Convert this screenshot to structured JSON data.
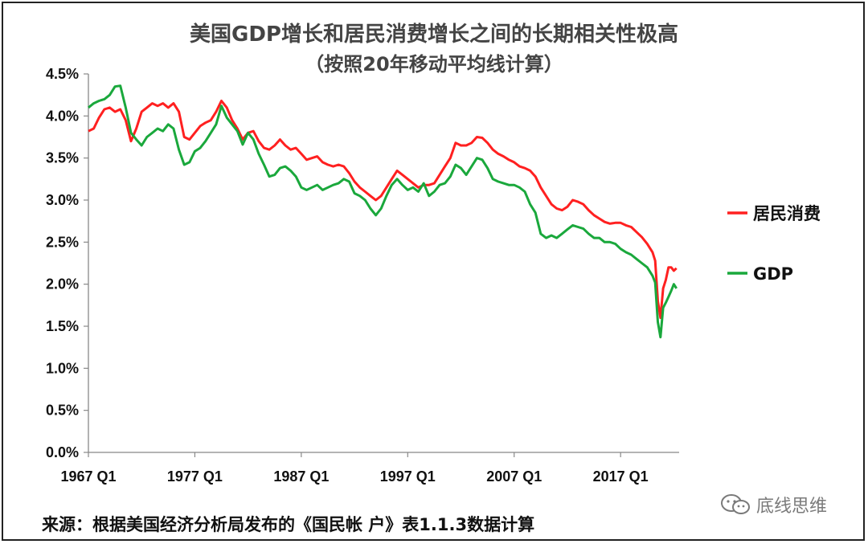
{
  "title_line1": "美国GDP增长和居民消费增长之间的长期相关性极高",
  "title_line2": "（按照20年移动平均线计算）",
  "source_note": "来源：根据美国经济分析局发布的《国民帐 户》表1.1.3数据计算",
  "watermark_text": "底线思维",
  "chart_data": {
    "type": "line",
    "x_start": 1967.0,
    "x_end": 2022.5,
    "x_ticks": [
      "1967 Q1",
      "1977 Q1",
      "1987 Q1",
      "1997 Q1",
      "2007 Q1",
      "2017 Q1"
    ],
    "x_tick_values": [
      1967,
      1977,
      1987,
      1997,
      2007,
      2017
    ],
    "y_ticks": [
      "0.0%",
      "0.5%",
      "1.0%",
      "1.5%",
      "2.0%",
      "2.5%",
      "3.0%",
      "3.5%",
      "4.0%",
      "4.5%"
    ],
    "ylim": [
      0,
      4.5
    ],
    "legend_position": "right",
    "grid": false,
    "series": [
      {
        "name": "居民消费",
        "color": "#ff2020",
        "points": [
          [
            1967.0,
            3.82
          ],
          [
            1967.5,
            3.85
          ],
          [
            1968.0,
            3.98
          ],
          [
            1968.5,
            4.08
          ],
          [
            1969.0,
            4.1
          ],
          [
            1969.5,
            4.05
          ],
          [
            1970.0,
            4.08
          ],
          [
            1970.5,
            3.95
          ],
          [
            1971.0,
            3.7
          ],
          [
            1971.5,
            3.85
          ],
          [
            1972.0,
            4.05
          ],
          [
            1972.5,
            4.1
          ],
          [
            1973.0,
            4.15
          ],
          [
            1973.5,
            4.12
          ],
          [
            1974.0,
            4.15
          ],
          [
            1974.5,
            4.1
          ],
          [
            1975.0,
            4.15
          ],
          [
            1975.5,
            4.05
          ],
          [
            1976.0,
            3.75
          ],
          [
            1976.5,
            3.72
          ],
          [
            1977.0,
            3.8
          ],
          [
            1977.5,
            3.88
          ],
          [
            1978.0,
            3.92
          ],
          [
            1978.5,
            3.95
          ],
          [
            1979.0,
            4.05
          ],
          [
            1979.5,
            4.18
          ],
          [
            1980.0,
            4.1
          ],
          [
            1980.5,
            3.95
          ],
          [
            1981.0,
            3.85
          ],
          [
            1981.5,
            3.72
          ],
          [
            1982.0,
            3.8
          ],
          [
            1982.5,
            3.82
          ],
          [
            1983.0,
            3.7
          ],
          [
            1983.5,
            3.62
          ],
          [
            1984.0,
            3.6
          ],
          [
            1984.5,
            3.65
          ],
          [
            1985.0,
            3.72
          ],
          [
            1985.5,
            3.65
          ],
          [
            1986.0,
            3.6
          ],
          [
            1986.5,
            3.62
          ],
          [
            1987.0,
            3.55
          ],
          [
            1987.5,
            3.48
          ],
          [
            1988.0,
            3.5
          ],
          [
            1988.5,
            3.52
          ],
          [
            1989.0,
            3.45
          ],
          [
            1989.5,
            3.42
          ],
          [
            1990.0,
            3.4
          ],
          [
            1990.5,
            3.42
          ],
          [
            1991.0,
            3.4
          ],
          [
            1991.5,
            3.32
          ],
          [
            1992.0,
            3.22
          ],
          [
            1992.5,
            3.15
          ],
          [
            1993.0,
            3.1
          ],
          [
            1993.5,
            3.05
          ],
          [
            1994.0,
            3.0
          ],
          [
            1994.5,
            3.05
          ],
          [
            1995.0,
            3.15
          ],
          [
            1995.5,
            3.25
          ],
          [
            1996.0,
            3.35
          ],
          [
            1996.5,
            3.3
          ],
          [
            1997.0,
            3.25
          ],
          [
            1997.5,
            3.2
          ],
          [
            1998.0,
            3.15
          ],
          [
            1998.5,
            3.18
          ],
          [
            1999.0,
            3.18
          ],
          [
            1999.5,
            3.2
          ],
          [
            2000.0,
            3.3
          ],
          [
            2000.5,
            3.4
          ],
          [
            2001.0,
            3.5
          ],
          [
            2001.5,
            3.68
          ],
          [
            2002.0,
            3.65
          ],
          [
            2002.5,
            3.65
          ],
          [
            2003.0,
            3.68
          ],
          [
            2003.5,
            3.75
          ],
          [
            2004.0,
            3.74
          ],
          [
            2004.5,
            3.68
          ],
          [
            2005.0,
            3.6
          ],
          [
            2005.5,
            3.55
          ],
          [
            2006.0,
            3.52
          ],
          [
            2006.5,
            3.48
          ],
          [
            2007.0,
            3.45
          ],
          [
            2007.5,
            3.4
          ],
          [
            2008.0,
            3.38
          ],
          [
            2008.5,
            3.35
          ],
          [
            2009.0,
            3.28
          ],
          [
            2009.5,
            3.15
          ],
          [
            2010.0,
            3.05
          ],
          [
            2010.5,
            2.95
          ],
          [
            2011.0,
            2.9
          ],
          [
            2011.5,
            2.88
          ],
          [
            2012.0,
            2.92
          ],
          [
            2012.5,
            3.0
          ],
          [
            2013.0,
            2.98
          ],
          [
            2013.5,
            2.95
          ],
          [
            2014.0,
            2.88
          ],
          [
            2014.5,
            2.82
          ],
          [
            2015.0,
            2.78
          ],
          [
            2015.5,
            2.74
          ],
          [
            2016.0,
            2.72
          ],
          [
            2016.5,
            2.73
          ],
          [
            2017.0,
            2.73
          ],
          [
            2017.5,
            2.7
          ],
          [
            2018.0,
            2.68
          ],
          [
            2018.5,
            2.62
          ],
          [
            2019.0,
            2.56
          ],
          [
            2019.5,
            2.48
          ],
          [
            2020.0,
            2.38
          ],
          [
            2020.25,
            2.28
          ],
          [
            2020.5,
            1.8
          ],
          [
            2020.75,
            1.6
          ],
          [
            2021.0,
            1.95
          ],
          [
            2021.25,
            2.05
          ],
          [
            2021.5,
            2.2
          ],
          [
            2021.75,
            2.2
          ],
          [
            2022.0,
            2.16
          ],
          [
            2022.25,
            2.19
          ]
        ]
      },
      {
        "name": "GDP",
        "color": "#1aa83c",
        "points": [
          [
            1967.0,
            4.1
          ],
          [
            1967.5,
            4.15
          ],
          [
            1968.0,
            4.18
          ],
          [
            1968.5,
            4.2
          ],
          [
            1969.0,
            4.25
          ],
          [
            1969.5,
            4.35
          ],
          [
            1970.0,
            4.36
          ],
          [
            1970.5,
            4.1
          ],
          [
            1971.0,
            3.8
          ],
          [
            1971.5,
            3.72
          ],
          [
            1972.0,
            3.65
          ],
          [
            1972.5,
            3.75
          ],
          [
            1973.0,
            3.8
          ],
          [
            1973.5,
            3.85
          ],
          [
            1974.0,
            3.82
          ],
          [
            1974.5,
            3.9
          ],
          [
            1975.0,
            3.85
          ],
          [
            1975.5,
            3.6
          ],
          [
            1976.0,
            3.42
          ],
          [
            1976.5,
            3.45
          ],
          [
            1977.0,
            3.58
          ],
          [
            1977.5,
            3.62
          ],
          [
            1978.0,
            3.7
          ],
          [
            1978.5,
            3.8
          ],
          [
            1979.0,
            3.9
          ],
          [
            1979.5,
            4.12
          ],
          [
            1980.0,
            3.98
          ],
          [
            1980.5,
            3.9
          ],
          [
            1981.0,
            3.82
          ],
          [
            1981.5,
            3.66
          ],
          [
            1982.0,
            3.8
          ],
          [
            1982.5,
            3.72
          ],
          [
            1983.0,
            3.55
          ],
          [
            1983.5,
            3.42
          ],
          [
            1984.0,
            3.28
          ],
          [
            1984.5,
            3.3
          ],
          [
            1985.0,
            3.38
          ],
          [
            1985.5,
            3.4
          ],
          [
            1986.0,
            3.35
          ],
          [
            1986.5,
            3.28
          ],
          [
            1987.0,
            3.15
          ],
          [
            1987.5,
            3.12
          ],
          [
            1988.0,
            3.15
          ],
          [
            1988.5,
            3.18
          ],
          [
            1989.0,
            3.12
          ],
          [
            1989.5,
            3.15
          ],
          [
            1990.0,
            3.18
          ],
          [
            1990.5,
            3.2
          ],
          [
            1991.0,
            3.25
          ],
          [
            1991.5,
            3.22
          ],
          [
            1992.0,
            3.08
          ],
          [
            1992.5,
            3.05
          ],
          [
            1993.0,
            3.0
          ],
          [
            1993.5,
            2.9
          ],
          [
            1994.0,
            2.82
          ],
          [
            1994.5,
            2.9
          ],
          [
            1995.0,
            3.05
          ],
          [
            1995.5,
            3.18
          ],
          [
            1996.0,
            3.25
          ],
          [
            1996.5,
            3.18
          ],
          [
            1997.0,
            3.12
          ],
          [
            1997.5,
            3.15
          ],
          [
            1998.0,
            3.1
          ],
          [
            1998.5,
            3.2
          ],
          [
            1999.0,
            3.05
          ],
          [
            1999.5,
            3.1
          ],
          [
            2000.0,
            3.18
          ],
          [
            2000.5,
            3.2
          ],
          [
            2001.0,
            3.28
          ],
          [
            2001.5,
            3.42
          ],
          [
            2002.0,
            3.38
          ],
          [
            2002.5,
            3.3
          ],
          [
            2003.0,
            3.4
          ],
          [
            2003.5,
            3.5
          ],
          [
            2004.0,
            3.48
          ],
          [
            2004.5,
            3.38
          ],
          [
            2005.0,
            3.25
          ],
          [
            2005.5,
            3.22
          ],
          [
            2006.0,
            3.2
          ],
          [
            2006.5,
            3.18
          ],
          [
            2007.0,
            3.18
          ],
          [
            2007.5,
            3.15
          ],
          [
            2008.0,
            3.1
          ],
          [
            2008.5,
            2.95
          ],
          [
            2009.0,
            2.85
          ],
          [
            2009.5,
            2.6
          ],
          [
            2010.0,
            2.55
          ],
          [
            2010.5,
            2.58
          ],
          [
            2011.0,
            2.55
          ],
          [
            2011.5,
            2.6
          ],
          [
            2012.0,
            2.65
          ],
          [
            2012.5,
            2.7
          ],
          [
            2013.0,
            2.68
          ],
          [
            2013.5,
            2.66
          ],
          [
            2014.0,
            2.6
          ],
          [
            2014.5,
            2.55
          ],
          [
            2015.0,
            2.55
          ],
          [
            2015.5,
            2.5
          ],
          [
            2016.0,
            2.5
          ],
          [
            2016.5,
            2.48
          ],
          [
            2017.0,
            2.42
          ],
          [
            2017.5,
            2.38
          ],
          [
            2018.0,
            2.35
          ],
          [
            2018.5,
            2.3
          ],
          [
            2019.0,
            2.25
          ],
          [
            2019.5,
            2.2
          ],
          [
            2020.0,
            2.1
          ],
          [
            2020.25,
            2.02
          ],
          [
            2020.5,
            1.55
          ],
          [
            2020.75,
            1.37
          ],
          [
            2021.0,
            1.72
          ],
          [
            2021.25,
            1.78
          ],
          [
            2021.5,
            1.85
          ],
          [
            2021.75,
            1.92
          ],
          [
            2022.0,
            2.0
          ],
          [
            2022.25,
            1.95
          ]
        ]
      }
    ]
  }
}
